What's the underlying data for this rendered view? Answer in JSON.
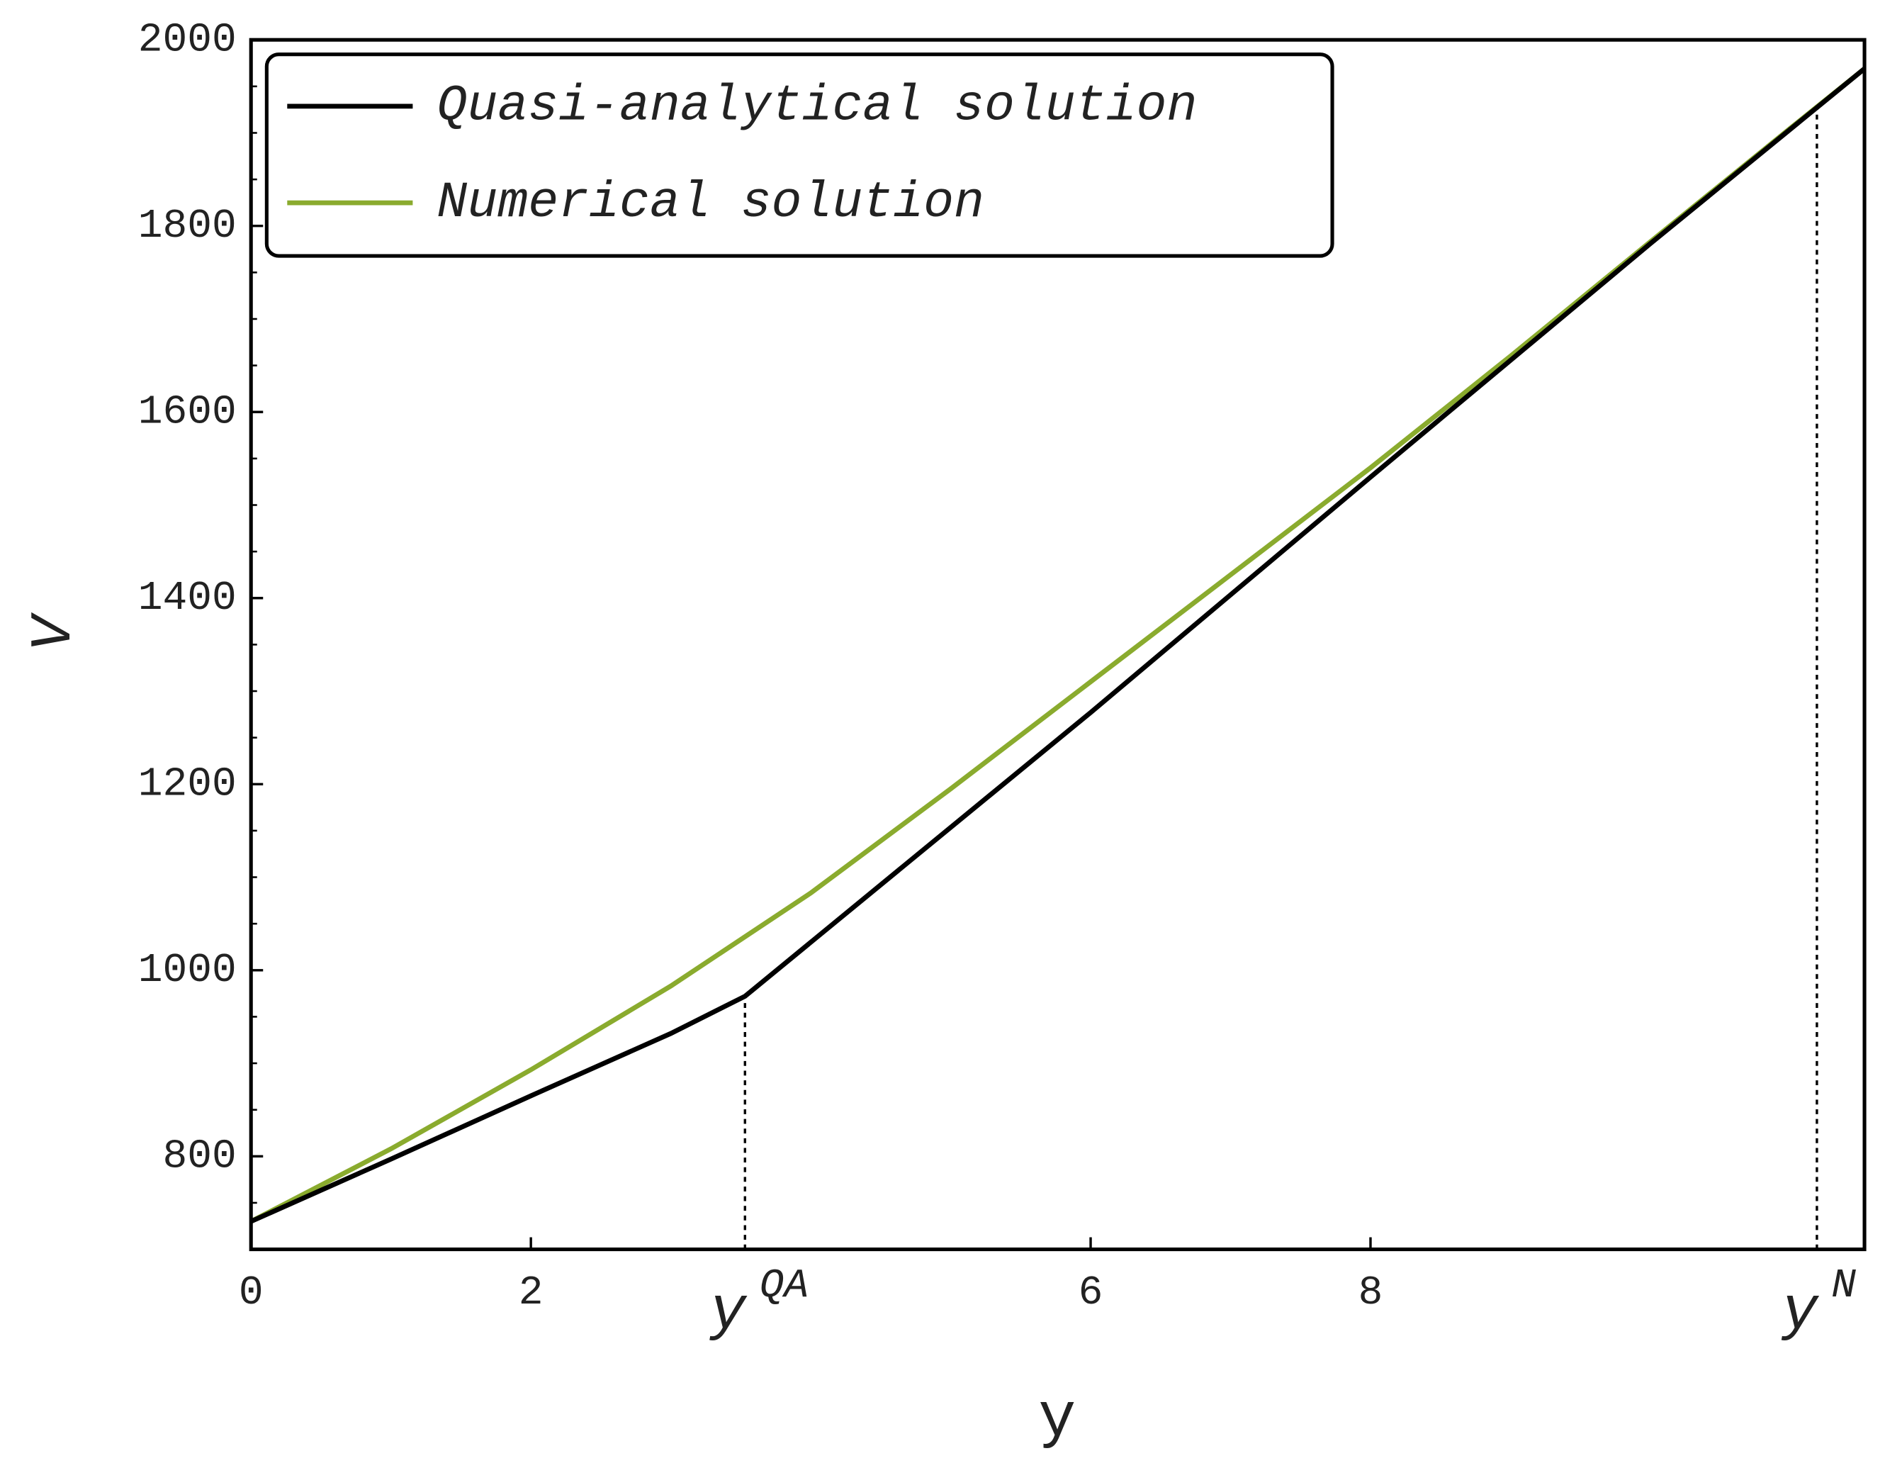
{
  "chart_data": {
    "type": "line",
    "x_label": "y",
    "y_label": "V",
    "xlim": [
      0,
      11.53
    ],
    "ylim": [
      700,
      2000
    ],
    "xticks": [
      0,
      2,
      6,
      8
    ],
    "yticks": [
      800,
      1000,
      1200,
      1400,
      1600,
      1800,
      2000
    ],
    "legend": "upper left",
    "series": [
      {
        "name": "Quasi-analytical solution",
        "color": "#000000",
        "x": [
          0,
          1,
          2,
          3,
          3.53,
          6,
          8,
          10,
          11.53
        ],
        "values": [
          730,
          797,
          865,
          932,
          972,
          1277,
          1530,
          1781,
          1969
        ]
      },
      {
        "name": "Numerical solution",
        "color": "#8aab2e",
        "x": [
          0,
          1,
          2,
          3,
          4,
          5,
          6,
          7,
          8,
          9,
          10,
          11,
          11.53
        ],
        "values": [
          730,
          808,
          893,
          983,
          1083,
          1195,
          1310,
          1425,
          1540,
          1660,
          1783,
          1905,
          1969
        ]
      }
    ],
    "markers": [
      {
        "x": 3.53,
        "y": 972,
        "label": "y",
        "superscript": "QA"
      },
      {
        "x": 11.19,
        "y": 1930,
        "label": "y",
        "superscript": "N"
      }
    ]
  }
}
